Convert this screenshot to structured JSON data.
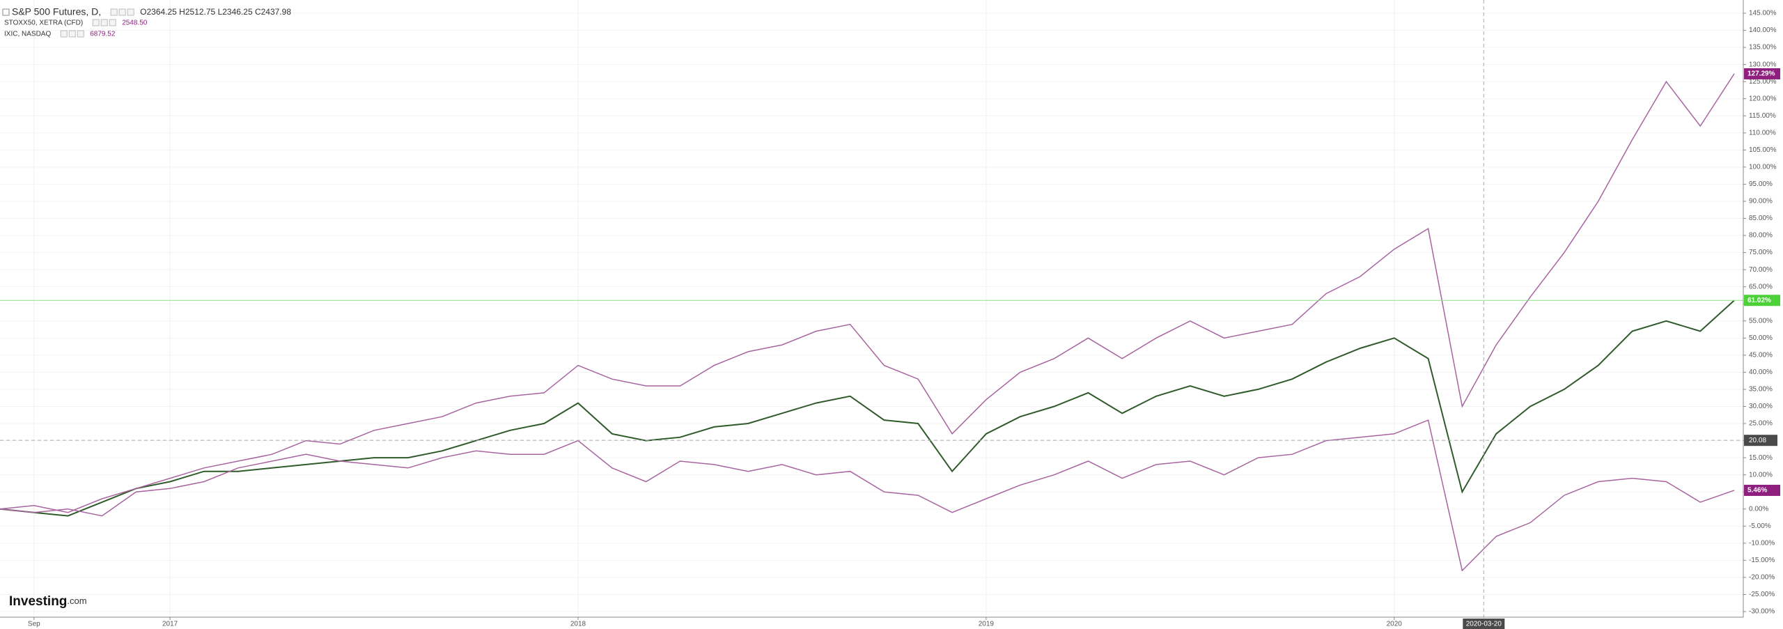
{
  "chart_data": {
    "type": "line",
    "x": [
      "2016-08",
      "2016-09",
      "2016-10",
      "2016-11",
      "2016-12",
      "2017-01",
      "2017-02",
      "2017-03",
      "2017-04",
      "2017-05",
      "2017-06",
      "2017-07",
      "2017-08",
      "2017-09",
      "2017-10",
      "2017-11",
      "2017-12",
      "2018-01",
      "2018-02",
      "2018-03",
      "2018-04",
      "2018-05",
      "2018-06",
      "2018-07",
      "2018-08",
      "2018-09",
      "2018-10",
      "2018-11",
      "2018-12",
      "2019-01",
      "2019-02",
      "2019-03",
      "2019-04",
      "2019-05",
      "2019-06",
      "2019-07",
      "2019-08",
      "2019-09",
      "2019-10",
      "2019-11",
      "2019-12",
      "2020-01",
      "2020-02",
      "2020-03",
      "2020-04",
      "2020-05",
      "2020-06",
      "2020-07",
      "2020-08",
      "2020-09",
      "2020-10",
      "2020-11"
    ],
    "series": [
      {
        "name": "S&P 500 Futures, D,",
        "info": "O2364.25  H2512.75  L2346.25  C2437.98",
        "color": "#2f5a2a",
        "last_label": "61.02%",
        "label_color": "#4cd137",
        "values": [
          0,
          -1,
          -2,
          2,
          6,
          8,
          11,
          11,
          12,
          13,
          14,
          15,
          15,
          17,
          20,
          23,
          25,
          31,
          22,
          20,
          21,
          24,
          25,
          28,
          31,
          33,
          26,
          25,
          11,
          22,
          27,
          30,
          34,
          28,
          33,
          36,
          33,
          35,
          38,
          43,
          47,
          50,
          44,
          5,
          22,
          30,
          35,
          42,
          52,
          55,
          52,
          61.02
        ]
      },
      {
        "name": "STOXX50, XETRA (CFD)",
        "info": "2548.50",
        "color": "#a7649f",
        "last_label": "5.46%",
        "label_color": "#8e1f7f",
        "values": [
          0,
          -1,
          0,
          -2,
          5,
          6,
          8,
          12,
          14,
          16,
          14,
          13,
          12,
          15,
          17,
          16,
          16,
          20,
          12,
          8,
          14,
          13,
          11,
          13,
          10,
          11,
          5,
          4,
          -1,
          3,
          7,
          10,
          14,
          9,
          13,
          14,
          10,
          15,
          16,
          20,
          21,
          22,
          26,
          -18,
          -8,
          -4,
          4,
          8,
          9,
          8,
          2,
          5.46
        ]
      },
      {
        "name": "IXIC, NASDAQ",
        "info": "6879.52",
        "color": "#a7649f",
        "last_label": "127.29%",
        "label_color": "#8e1f7f",
        "values": [
          0,
          1,
          -1,
          3,
          6,
          9,
          12,
          14,
          16,
          20,
          19,
          23,
          25,
          27,
          31,
          33,
          34,
          42,
          38,
          36,
          36,
          42,
          46,
          48,
          52,
          54,
          42,
          38,
          22,
          32,
          40,
          44,
          50,
          44,
          50,
          55,
          50,
          52,
          54,
          63,
          68,
          76,
          82,
          30,
          48,
          62,
          75,
          90,
          108,
          125,
          112,
          127.29
        ]
      }
    ],
    "xlim": [
      "2016-08",
      "2020-11"
    ],
    "xticks": [
      {
        "value": "2016-09",
        "label": "Sep"
      },
      2017,
      2018,
      2019,
      2020
    ],
    "ylim": [
      -30,
      145
    ],
    "yticks": [
      {
        "value": 145,
        "label": "145.00%"
      },
      {
        "value": 140,
        "label": "140.00%"
      },
      {
        "value": 135,
        "label": "135.00%"
      },
      {
        "value": 130,
        "label": "130.00%"
      },
      {
        "value": 125,
        "label": "125.00%"
      },
      {
        "value": 120,
        "label": "120.00%"
      },
      {
        "value": 115,
        "label": "115.00%"
      },
      {
        "value": 110,
        "label": "110.00%"
      },
      {
        "value": 105,
        "label": "105.00%"
      },
      {
        "value": 100,
        "label": "100.00%"
      },
      {
        "value": 95,
        "label": "95.00%"
      },
      {
        "value": 90,
        "label": "90.00%"
      },
      {
        "value": 85,
        "label": "85.00%"
      },
      {
        "value": 80,
        "label": "80.00%"
      },
      {
        "value": 75,
        "label": "75.00%"
      },
      {
        "value": 70,
        "label": "70.00%"
      },
      {
        "value": 65,
        "label": "65.00%"
      },
      {
        "value": 60,
        "label": "60.00%"
      },
      {
        "value": 55,
        "label": "55.00%"
      },
      {
        "value": 50,
        "label": "50.00%"
      },
      {
        "value": 45,
        "label": "45.00%"
      },
      {
        "value": 40,
        "label": "40.00%"
      },
      {
        "value": 35,
        "label": "35.00%"
      },
      {
        "value": 30,
        "label": "30.00%"
      },
      {
        "value": 25,
        "label": "25.00%"
      },
      {
        "value": 20,
        "label": "20.00%"
      },
      {
        "value": 15,
        "label": "15.00%"
      },
      {
        "value": 10,
        "label": "10.00%"
      },
      {
        "value": 5,
        "label": "5.00%"
      },
      {
        "value": 0,
        "label": "0.00%"
      },
      {
        "value": -5,
        "label": "-5.00%"
      },
      {
        "value": -10,
        "label": "-10.00%"
      },
      {
        "value": -15,
        "label": "-15.00%"
      },
      {
        "value": -20,
        "label": "-20.00%"
      },
      {
        "value": -25,
        "label": "-25.00%"
      },
      {
        "value": -30,
        "label": "-30.00%"
      }
    ],
    "grid": true,
    "crosshair": {
      "x": "2020-03-20",
      "y": 20.08,
      "y_label": "20.08"
    },
    "logo": {
      "main": "Investing",
      "suffix": ".com"
    }
  }
}
